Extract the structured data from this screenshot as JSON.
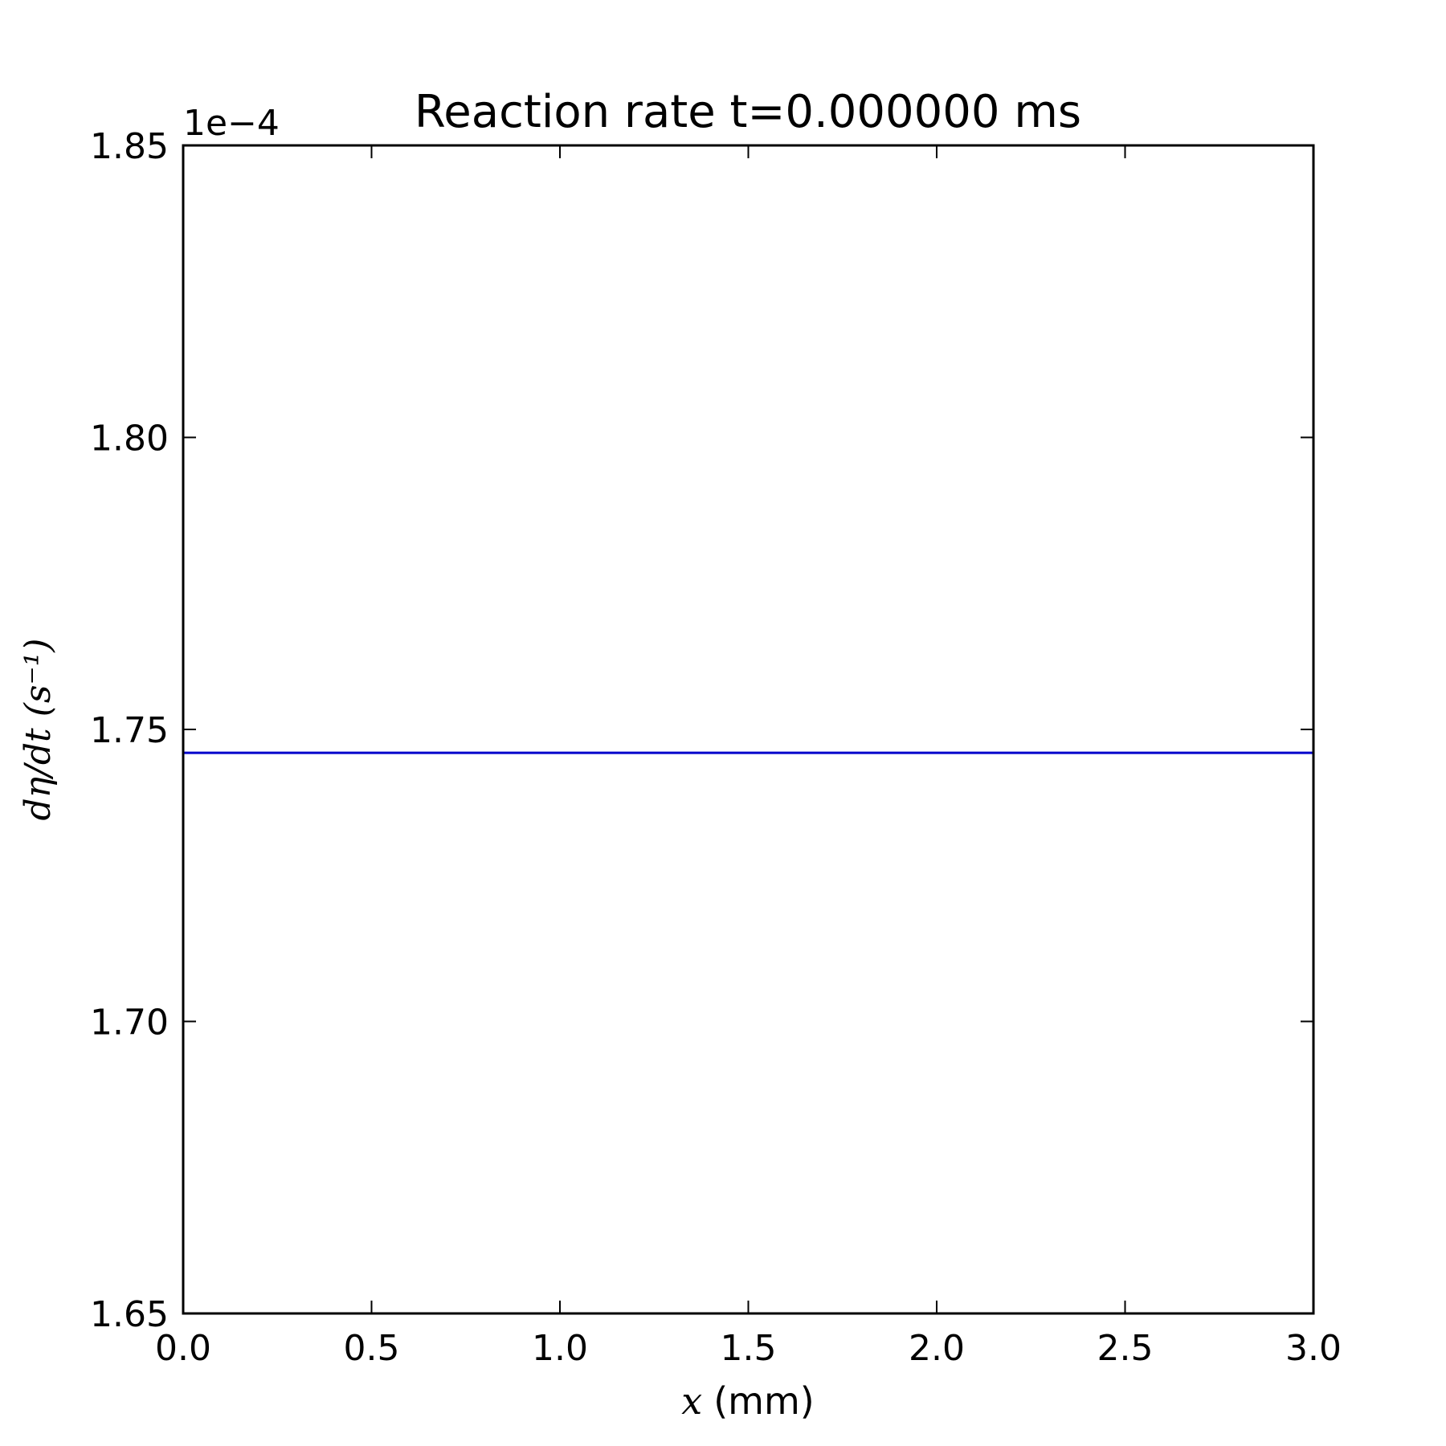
{
  "chart_data": {
    "type": "line",
    "title": "Reaction rate t=0.000000 ms",
    "xlabel_math": "x",
    "xlabel_rest": "(mm)",
    "ylabel": "dη/dt (s⁻¹)",
    "y_offset_label": "1e−4",
    "xlim": [
      0.0,
      3.0
    ],
    "ylim": [
      1.65,
      1.85
    ],
    "x_ticks": [
      0.0,
      0.5,
      1.0,
      1.5,
      2.0,
      2.5,
      3.0
    ],
    "x_tick_labels": [
      "0.0",
      "0.5",
      "1.0",
      "1.5",
      "2.0",
      "2.5",
      "3.0"
    ],
    "y_ticks": [
      1.65,
      1.7,
      1.75,
      1.8,
      1.85
    ],
    "y_tick_labels": [
      "1.65",
      "1.70",
      "1.75",
      "1.80",
      "1.85"
    ],
    "grid": false,
    "series": [
      {
        "color": "#0000cc",
        "x": [
          0.0,
          3.0
        ],
        "y": [
          1.746,
          1.746
        ]
      }
    ]
  }
}
